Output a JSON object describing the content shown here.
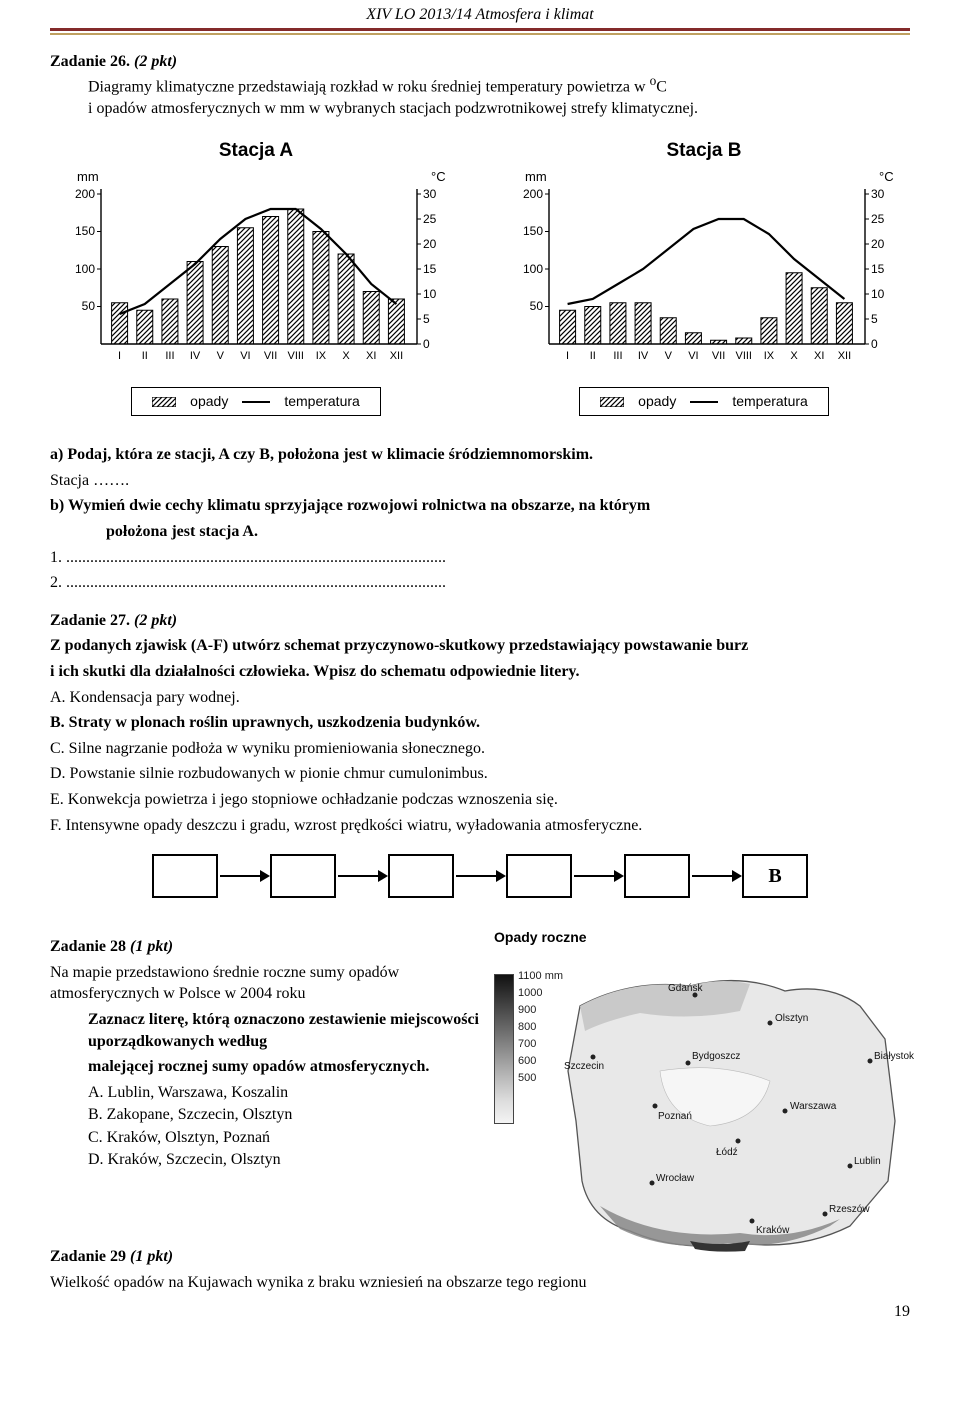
{
  "header": "XIV LO 2013/14 Atmosfera i klimat",
  "t26": {
    "head": "Zadanie 26.",
    "pkt": "(2 pkt)",
    "body1": "Diagramy klimatyczne przedstawiają rozkład w roku średniej temperatury powietrza w ",
    "deg": "o",
    "body1b": "C",
    "body2": "i opadów atmosferycznych w mm w wybranych stacjach podzwrotnikowej strefy klimatycznej."
  },
  "chartA": {
    "title": "Stacja A",
    "mm": "mm",
    "degC": "°C",
    "y_mm": [
      200,
      150,
      100,
      50
    ],
    "y_c": [
      30,
      25,
      20,
      15,
      10,
      5,
      0
    ],
    "months": [
      "I",
      "II",
      "III",
      "IV",
      "V",
      "VI",
      "VII",
      "VIII",
      "IX",
      "X",
      "XI",
      "XII"
    ],
    "bars": [
      55,
      45,
      60,
      110,
      130,
      155,
      170,
      180,
      150,
      120,
      70,
      60
    ],
    "temps": [
      6,
      8,
      12,
      16,
      21,
      25,
      27,
      27,
      23,
      18,
      12,
      8
    ],
    "legend_opady": "opady",
    "legend_temp": "temperatura"
  },
  "chartB": {
    "title": "Stacja B",
    "mm": "mm",
    "degC": "°C",
    "y_mm": [
      200,
      150,
      100,
      50
    ],
    "y_c": [
      30,
      25,
      20,
      15,
      10,
      5,
      0
    ],
    "months": [
      "I",
      "II",
      "III",
      "IV",
      "V",
      "VI",
      "VII",
      "VIII",
      "IX",
      "X",
      "XI",
      "XII"
    ],
    "bars": [
      45,
      50,
      55,
      55,
      35,
      15,
      5,
      8,
      35,
      95,
      75,
      55
    ],
    "temps": [
      8,
      9,
      12,
      15,
      19,
      23,
      25,
      25,
      22,
      17,
      13,
      9
    ],
    "legend_opady": "opady",
    "legend_temp": "temperatura"
  },
  "t26q": {
    "a_head": "a",
    "a_text": ") Podaj, która ze stacji, A czy B, położona jest w klimacie śródziemnomorskim.",
    "stacja": "Stacja …….",
    "b_head": "b) Wymień dwie cechy klimatu sprzyjające rozwojowi rolnictwa na obszarze, na którym",
    "b_head2": "położona jest stacja A.",
    "line1": "1. ...............................................................................................",
    "line2": "2. ..............................................................................................."
  },
  "t27": {
    "head": "Zadanie 27.",
    "pkt": "(2 pkt)",
    "p1": "Z podanych zjawisk (A-F) utwórz schemat przyczynowo-skutkowy przedstawiający powstawanie burz",
    "p2": "i ich skutki dla działalności człowieka. Wpisz do schematu odpowiednie litery.",
    "A": "A. Kondensacja pary wodnej.",
    "B": "B. Straty w plonach roślin uprawnych, uszkodzenia budynków.",
    "C": "C. Silne nagrzanie podłoża w wyniku promieniowania słonecznego.",
    "D": "D. Powstanie silnie rozbudowanych w pionie chmur cumulonimbus.",
    "E": "E. Konwekcja powietrza i jego stopniowe ochładzanie podczas wznoszenia się.",
    "F": "F. Intensywne opady deszczu i gradu, wzrost prędkości wiatru, wyładowania atmosferyczne.",
    "last_box": "B"
  },
  "t28": {
    "head": "Zadanie 28",
    "pkt": "(1 pkt)",
    "p1": "Na mapie przedstawiono średnie roczne sumy opadów atmosferycznych w Polsce w 2004 roku",
    "p2a": "Zaznacz literę, którą oznaczono zestawienie miejscowości uporządkowanych według",
    "p2b": "malejącej rocznej sumy opadów atmosferycznych.",
    "A": "A. Lublin, Warszawa, Koszalin",
    "B": "B. Zakopane, Szczecin, Olsztyn",
    "C": "C. Kraków, Olsztyn, Poznań",
    "D": "D. Kraków, Szczecin, Olsztyn",
    "map_title": "Opady roczne",
    "legend": [
      "1100 mm",
      "1000",
      "900",
      "800",
      "700",
      "600",
      "500"
    ],
    "cities": {
      "gdansk": "Gdańsk",
      "olsztyn": "Olsztyn",
      "szczecin": "Szczecin",
      "bydgoszcz": "Bydgoszcz",
      "bialystok": "Białystok",
      "poznan": "Poznań",
      "warszawa": "Warszawa",
      "lodz": "Łódź",
      "wroclaw": "Wrocław",
      "lublin": "Lublin",
      "krakow": "Kraków",
      "rzeszow": "Rzeszów"
    }
  },
  "t29": {
    "head": "Zadanie 29",
    "pkt": "(1 pkt)",
    "p": "Wielkość opadów na Kujawach wynika z braku wzniesień na obszarze tego regionu"
  },
  "pagenum": "19"
}
